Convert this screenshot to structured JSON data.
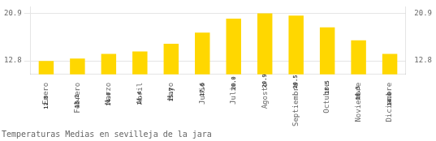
{
  "chart_data": {
    "type": "bar",
    "title": "Temperaturas Medias en sevilleja de la jara",
    "categories": [
      "Enero",
      "Febrero",
      "Marzo",
      "Abril",
      "Mayo",
      "Junio",
      "Julio",
      "Agosto",
      "Septiembre",
      "Octubre",
      "Noviembre",
      "Diciembre"
    ],
    "values": [
      12.8,
      13.2,
      14.0,
      14.4,
      15.7,
      17.6,
      20.0,
      20.9,
      20.5,
      18.5,
      16.3,
      14.0
    ],
    "value_labels": [
      "12.8",
      "13.2",
      "14.0",
      "14.4",
      "15.7",
      "17.6",
      "20.0",
      "20.9",
      "20.5",
      "18.5",
      "16.3",
      "14.0"
    ],
    "data_labels": true,
    "color": "#FFD700",
    "ylim": [
      10.5,
      22.0
    ],
    "yticks": [
      12.8,
      20.9
    ],
    "y2lim": [
      10.5,
      22.0
    ],
    "y2ticks": [
      12.8,
      20.9
    ],
    "grid": true
  }
}
